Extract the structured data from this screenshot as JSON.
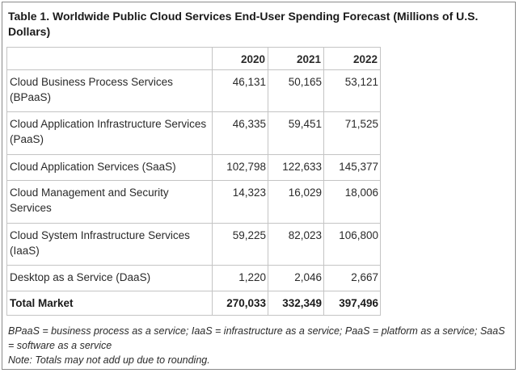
{
  "title": "Table 1. Worldwide Public Cloud Services End-User Spending Forecast (Millions of U.S. Dollars)",
  "table": {
    "headers": [
      "",
      "2020",
      "2021",
      "2022"
    ],
    "rows": [
      {
        "label": "Cloud Business Process Services (BPaaS)",
        "v2020": "46,131",
        "v2021": "50,165",
        "v2022": "53,121"
      },
      {
        "label": "Cloud Application Infrastructure Services (PaaS)",
        "v2020": "46,335",
        "v2021": "59,451",
        "v2022": "71,525"
      },
      {
        "label": "Cloud Application Services (SaaS)",
        "v2020": "102,798",
        "v2021": "122,633",
        "v2022": "145,377"
      },
      {
        "label": "Cloud Management and Security Services",
        "v2020": "14,323",
        "v2021": "16,029",
        "v2022": "18,006"
      },
      {
        "label": "Cloud System Infrastructure Services (IaaS)",
        "v2020": "59,225",
        "v2021": "82,023",
        "v2022": "106,800"
      },
      {
        "label": "Desktop as a Service (DaaS)",
        "v2020": "1,220",
        "v2021": "2,046",
        "v2022": "2,667"
      }
    ],
    "total": {
      "label": "Total Market",
      "v2020": "270,033",
      "v2021": "332,349",
      "v2022": "397,496"
    }
  },
  "footnotes": {
    "definitions": "BPaaS = business process as a service; IaaS = infrastructure as a service; PaaS = platform as a service; SaaS = software as a service",
    "note": "Note: Totals may not add up due to rounding."
  }
}
